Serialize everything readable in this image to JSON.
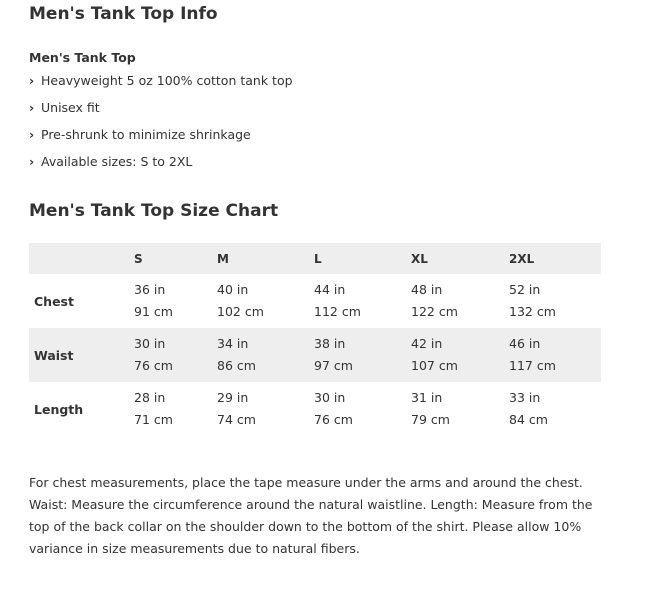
{
  "info": {
    "title": "Men's Tank Top Info",
    "product_name": "Men's Tank Top",
    "bullet_icon": "chevron-right-icon",
    "features": [
      "Heavyweight 5 oz 100% cotton tank top",
      "Unisex fit",
      "Pre-shrunk to minimize shrinkage",
      "Available sizes: S to 2XL"
    ]
  },
  "size_chart": {
    "title": "Men's Tank Top Size Chart",
    "header_fill": "#eeeeee",
    "sizes": [
      "S",
      "M",
      "L",
      "XL",
      "2XL"
    ],
    "rows": [
      {
        "label": "Chest",
        "cells": [
          {
            "in": "36 in",
            "cm": "91 cm"
          },
          {
            "in": "40 in",
            "cm": "102 cm"
          },
          {
            "in": "44 in",
            "cm": "112 cm"
          },
          {
            "in": "48 in",
            "cm": "122 cm"
          },
          {
            "in": "52 in",
            "cm": "132 cm"
          }
        ]
      },
      {
        "label": "Waist",
        "cells": [
          {
            "in": "30 in",
            "cm": "76 cm"
          },
          {
            "in": "34 in",
            "cm": "86 cm"
          },
          {
            "in": "38 in",
            "cm": "97 cm"
          },
          {
            "in": "42 in",
            "cm": "107 cm"
          },
          {
            "in": "46 in",
            "cm": "117 cm"
          }
        ]
      },
      {
        "label": "Length",
        "cells": [
          {
            "in": "28 in",
            "cm": "71 cm"
          },
          {
            "in": "29 in",
            "cm": "74 cm"
          },
          {
            "in": "30 in",
            "cm": "76 cm"
          },
          {
            "in": "31 in",
            "cm": "79 cm"
          },
          {
            "in": "33 in",
            "cm": "84 cm"
          }
        ]
      }
    ]
  },
  "note": "For chest measurements, place the tape measure under the arms and around the chest. Waist: Measure the circumference around the natural waistline. Length: Measure from the top of the back collar on the shoulder down to the bottom of the shirt. Please allow 10% variance in size measurements due to natural fibers."
}
